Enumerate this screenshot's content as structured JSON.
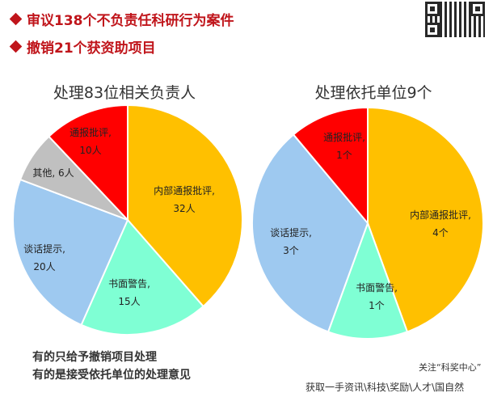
{
  "header": {
    "bullet_1": "审议138个不负责任科研行为案件",
    "bullet_2": "撤销21个获资助项目"
  },
  "chart_data": [
    {
      "type": "pie",
      "title": "处理83位相关负责人",
      "slices": [
        {
          "label": "内部通报批评,",
          "value_label": "32人",
          "value": 32,
          "color": "#ffc000"
        },
        {
          "label": "书面警告,",
          "value_label": "15人",
          "value": 15,
          "color": "#7fffd4"
        },
        {
          "label": "谈话提示,",
          "value_label": "20人",
          "value": 20,
          "color": "#9ec9f0"
        },
        {
          "label": "其他, 6人",
          "value_label": "",
          "value": 6,
          "color": "#c0c0c0"
        },
        {
          "label": "通报批评,",
          "value_label": "10人",
          "value": 10,
          "color": "#ff0000"
        }
      ]
    },
    {
      "type": "pie",
      "title": "处理依托单位9个",
      "slices": [
        {
          "label": "内部通报批评,",
          "value_label": "4个",
          "value": 4,
          "color": "#ffc000"
        },
        {
          "label": "书面警告,",
          "value_label": "1个",
          "value": 1,
          "color": "#7fffd4"
        },
        {
          "label": "谈话提示,",
          "value_label": "3个",
          "value": 3,
          "color": "#9ec9f0"
        },
        {
          "label": "通报批评,",
          "value_label": "1个",
          "value": 1,
          "color": "#ff0000"
        }
      ]
    }
  ],
  "notes": {
    "line_1": "有的只给予撤销项目处理",
    "line_2": "有的是接受依托单位的处理意见"
  },
  "follow": "关注“科奖中心”",
  "footer": "获取一手资讯\\科技\\奖励\\人才\\国自然"
}
